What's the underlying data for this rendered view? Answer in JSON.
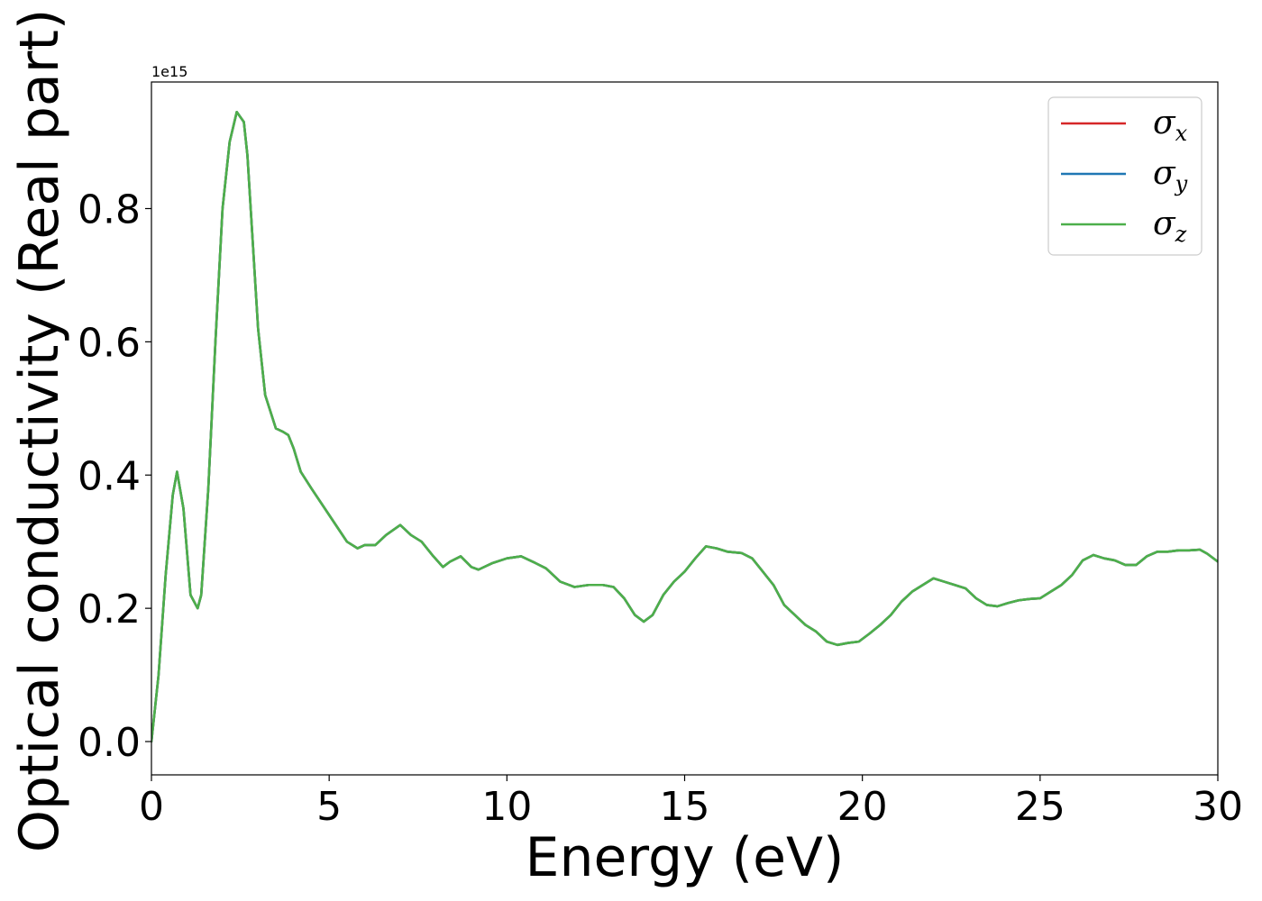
{
  "chart_data": {
    "type": "line",
    "title": "",
    "xlabel": "Energy (eV)",
    "ylabel": "Optical conductivity (Real part)",
    "y_offset_text": "1e15",
    "y_multiplier": 1000000000000000.0,
    "xlim": [
      0,
      30
    ],
    "ylim": [
      -0.05,
      0.99
    ],
    "x_ticks": [
      0,
      5,
      10,
      15,
      20,
      25,
      30
    ],
    "x_tick_labels": [
      "0",
      "5",
      "10",
      "15",
      "20",
      "25",
      "30"
    ],
    "y_ticks": [
      0.0,
      0.2,
      0.4,
      0.6,
      0.8
    ],
    "y_tick_labels": [
      "0.0",
      "0.2",
      "0.4",
      "0.6",
      "0.8"
    ],
    "grid": false,
    "legend_position": "top-right",
    "x": [
      0,
      0.2,
      0.4,
      0.6,
      0.72,
      0.9,
      1.1,
      1.3,
      1.4,
      1.6,
      1.8,
      2.0,
      2.2,
      2.4,
      2.6,
      2.7,
      2.85,
      3.0,
      3.2,
      3.5,
      3.7,
      3.85,
      4.0,
      4.2,
      4.5,
      5.0,
      5.5,
      5.8,
      6.0,
      6.3,
      6.6,
      7.0,
      7.3,
      7.6,
      7.9,
      8.2,
      8.4,
      8.7,
      9.0,
      9.2,
      9.6,
      10.0,
      10.4,
      10.8,
      11.1,
      11.5,
      11.9,
      12.3,
      12.7,
      13.0,
      13.3,
      13.6,
      13.85,
      14.1,
      14.4,
      14.7,
      15.0,
      15.3,
      15.6,
      15.9,
      16.2,
      16.6,
      16.9,
      17.2,
      17.5,
      17.8,
      18.1,
      18.4,
      18.7,
      19.0,
      19.3,
      19.6,
      19.9,
      20.2,
      20.5,
      20.8,
      21.1,
      21.4,
      21.7,
      22.0,
      22.3,
      22.6,
      22.9,
      23.2,
      23.5,
      23.8,
      24.1,
      24.4,
      24.7,
      25.0,
      25.3,
      25.6,
      25.9,
      26.2,
      26.5,
      26.8,
      27.1,
      27.4,
      27.7,
      28.0,
      28.3,
      28.6,
      28.9,
      29.2,
      29.5,
      29.7,
      30.0
    ],
    "series": [
      {
        "name": "σx",
        "color": "#d62728",
        "values": [
          0.0,
          0.1,
          0.25,
          0.37,
          0.405,
          0.35,
          0.22,
          0.2,
          0.22,
          0.38,
          0.6,
          0.8,
          0.9,
          0.945,
          0.93,
          0.88,
          0.75,
          0.62,
          0.52,
          0.47,
          0.465,
          0.46,
          0.44,
          0.405,
          0.38,
          0.34,
          0.3,
          0.29,
          0.295,
          0.295,
          0.31,
          0.325,
          0.31,
          0.3,
          0.28,
          0.262,
          0.27,
          0.278,
          0.262,
          0.258,
          0.268,
          0.275,
          0.278,
          0.268,
          0.26,
          0.24,
          0.232,
          0.235,
          0.235,
          0.232,
          0.215,
          0.19,
          0.18,
          0.19,
          0.22,
          0.24,
          0.255,
          0.275,
          0.293,
          0.29,
          0.285,
          0.283,
          0.275,
          0.255,
          0.235,
          0.205,
          0.19,
          0.175,
          0.165,
          0.15,
          0.145,
          0.148,
          0.15,
          0.162,
          0.175,
          0.19,
          0.21,
          0.225,
          0.235,
          0.245,
          0.24,
          0.235,
          0.23,
          0.215,
          0.205,
          0.203,
          0.208,
          0.212,
          0.214,
          0.215,
          0.225,
          0.235,
          0.25,
          0.272,
          0.28,
          0.275,
          0.272,
          0.265,
          0.265,
          0.278,
          0.285,
          0.285,
          0.287,
          0.287,
          0.288,
          0.282,
          0.27
        ]
      },
      {
        "name": "σy",
        "color": "#1f77b4",
        "values": [
          0.0,
          0.1,
          0.25,
          0.37,
          0.405,
          0.35,
          0.22,
          0.2,
          0.22,
          0.38,
          0.6,
          0.8,
          0.9,
          0.945,
          0.93,
          0.88,
          0.75,
          0.62,
          0.52,
          0.47,
          0.465,
          0.46,
          0.44,
          0.405,
          0.38,
          0.34,
          0.3,
          0.29,
          0.295,
          0.295,
          0.31,
          0.325,
          0.31,
          0.3,
          0.28,
          0.262,
          0.27,
          0.278,
          0.262,
          0.258,
          0.268,
          0.275,
          0.278,
          0.268,
          0.26,
          0.24,
          0.232,
          0.235,
          0.235,
          0.232,
          0.215,
          0.19,
          0.18,
          0.19,
          0.22,
          0.24,
          0.255,
          0.275,
          0.293,
          0.29,
          0.285,
          0.283,
          0.275,
          0.255,
          0.235,
          0.205,
          0.19,
          0.175,
          0.165,
          0.15,
          0.145,
          0.148,
          0.15,
          0.162,
          0.175,
          0.19,
          0.21,
          0.225,
          0.235,
          0.245,
          0.24,
          0.235,
          0.23,
          0.215,
          0.205,
          0.203,
          0.208,
          0.212,
          0.214,
          0.215,
          0.225,
          0.235,
          0.25,
          0.272,
          0.28,
          0.275,
          0.272,
          0.265,
          0.265,
          0.278,
          0.285,
          0.285,
          0.287,
          0.287,
          0.288,
          0.282,
          0.27
        ]
      },
      {
        "name": "σz",
        "color": "#4daf4a",
        "values": [
          0.0,
          0.1,
          0.25,
          0.37,
          0.405,
          0.35,
          0.22,
          0.2,
          0.22,
          0.38,
          0.6,
          0.8,
          0.9,
          0.945,
          0.93,
          0.88,
          0.75,
          0.62,
          0.52,
          0.47,
          0.465,
          0.46,
          0.44,
          0.405,
          0.38,
          0.34,
          0.3,
          0.29,
          0.295,
          0.295,
          0.31,
          0.325,
          0.31,
          0.3,
          0.28,
          0.262,
          0.27,
          0.278,
          0.262,
          0.258,
          0.268,
          0.275,
          0.278,
          0.268,
          0.26,
          0.24,
          0.232,
          0.235,
          0.235,
          0.232,
          0.215,
          0.19,
          0.18,
          0.19,
          0.22,
          0.24,
          0.255,
          0.275,
          0.293,
          0.29,
          0.285,
          0.283,
          0.275,
          0.255,
          0.235,
          0.205,
          0.19,
          0.175,
          0.165,
          0.15,
          0.145,
          0.148,
          0.15,
          0.162,
          0.175,
          0.19,
          0.21,
          0.225,
          0.235,
          0.245,
          0.24,
          0.235,
          0.23,
          0.215,
          0.205,
          0.203,
          0.208,
          0.212,
          0.214,
          0.215,
          0.225,
          0.235,
          0.25,
          0.272,
          0.28,
          0.275,
          0.272,
          0.265,
          0.265,
          0.278,
          0.285,
          0.285,
          0.287,
          0.287,
          0.288,
          0.282,
          0.27
        ]
      }
    ],
    "legend": [
      {
        "symbol": "σ",
        "sub": "x",
        "color": "#d62728"
      },
      {
        "symbol": "σ",
        "sub": "y",
        "color": "#1f77b4"
      },
      {
        "symbol": "σ",
        "sub": "z",
        "color": "#4daf4a"
      }
    ]
  }
}
